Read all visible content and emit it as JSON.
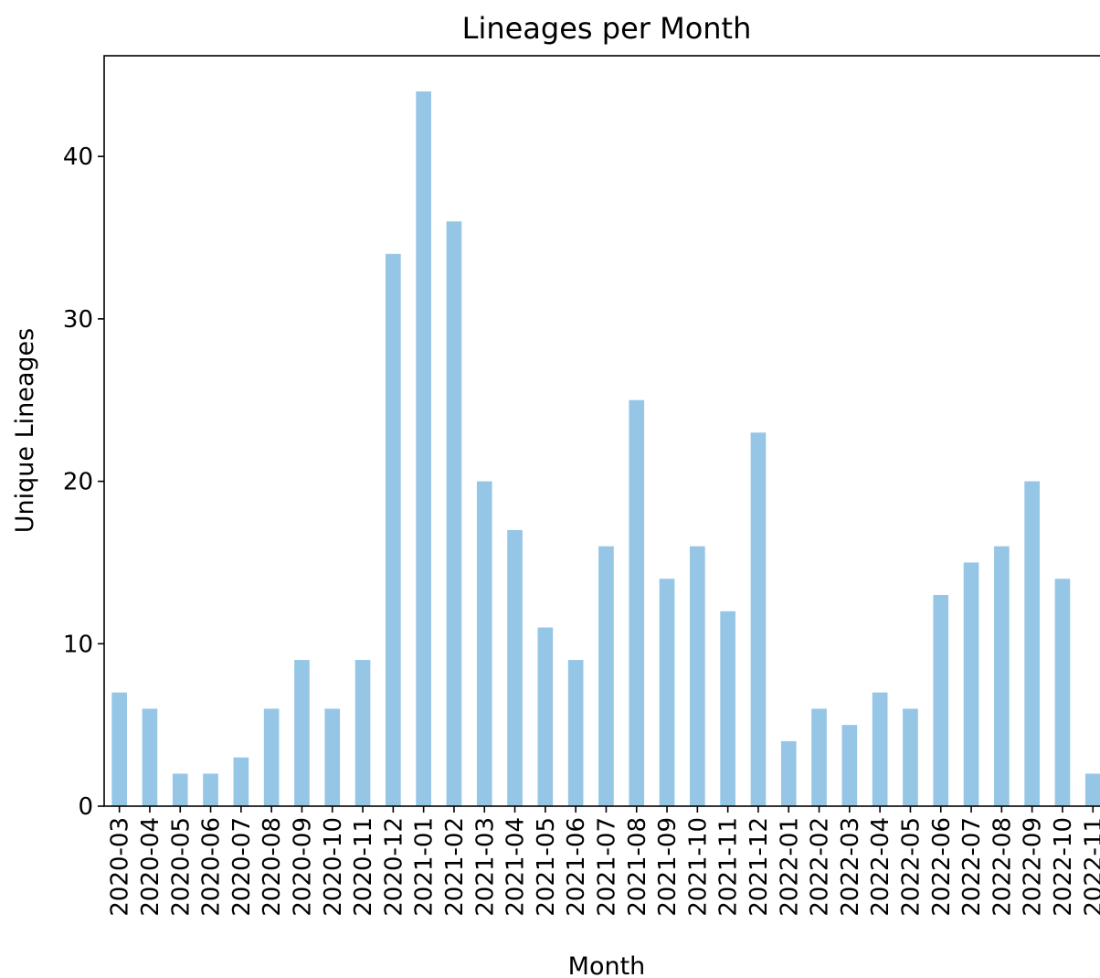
{
  "chart_data": {
    "type": "bar",
    "title": "Lineages per Month",
    "xlabel": "Month",
    "ylabel": "Unique Lineages",
    "categories": [
      "2020-03",
      "2020-04",
      "2020-05",
      "2020-06",
      "2020-07",
      "2020-08",
      "2020-09",
      "2020-10",
      "2020-11",
      "2020-12",
      "2021-01",
      "2021-02",
      "2021-03",
      "2021-04",
      "2021-05",
      "2021-06",
      "2021-07",
      "2021-08",
      "2021-09",
      "2021-10",
      "2021-11",
      "2021-12",
      "2022-01",
      "2022-02",
      "2022-03",
      "2022-04",
      "2022-05",
      "2022-06",
      "2022-07",
      "2022-08",
      "2022-09",
      "2022-10",
      "2022-11"
    ],
    "values": [
      7,
      6,
      2,
      2,
      3,
      6,
      9,
      6,
      9,
      34,
      44,
      36,
      20,
      17,
      11,
      9,
      16,
      25,
      14,
      16,
      12,
      23,
      4,
      6,
      5,
      7,
      6,
      13,
      15,
      16,
      20,
      14,
      2
    ],
    "color": "#95c6e6",
    "ylim": [
      0,
      46.2
    ],
    "yticks": [
      0,
      10,
      20,
      30,
      40
    ],
    "grid": false
  }
}
